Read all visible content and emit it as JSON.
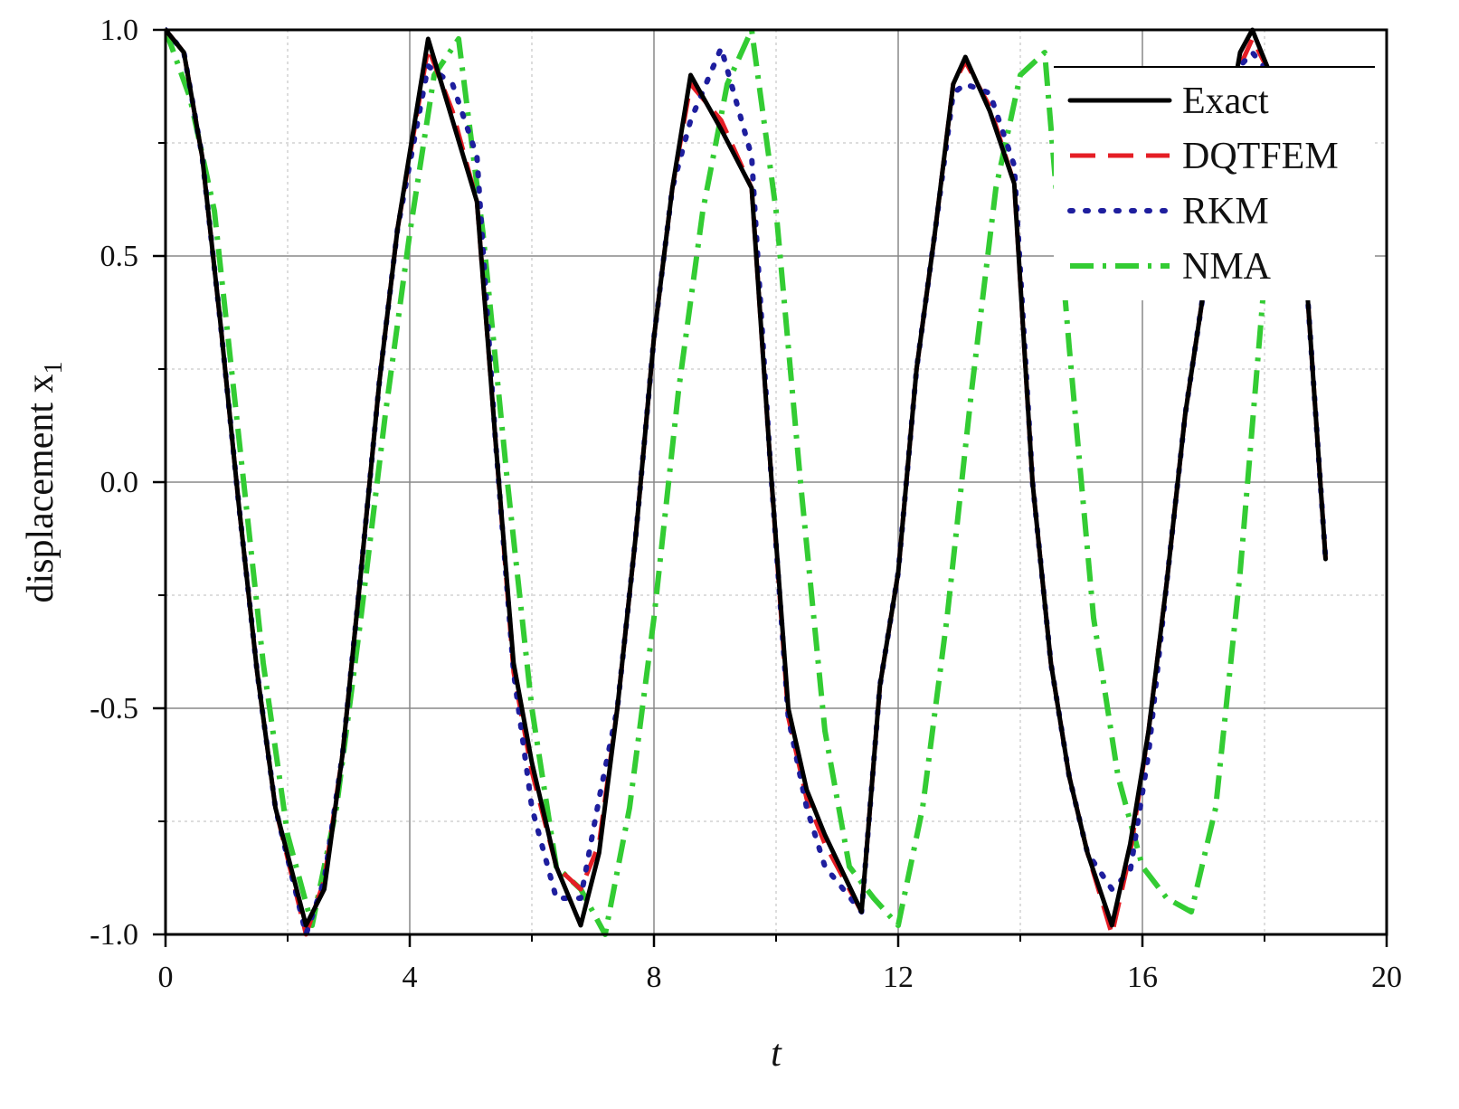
{
  "chart_data": {
    "type": "line",
    "title": "",
    "xlabel": "t",
    "ylabel": "displacement x",
    "ylabel_subscript": "1",
    "xlim": [
      0,
      20
    ],
    "ylim": [
      -1.0,
      1.0
    ],
    "x_ticks": [
      0,
      4,
      8,
      12,
      16,
      20
    ],
    "x_tick_labels": [
      "0",
      "4",
      "8",
      "12",
      "16",
      "20"
    ],
    "y_ticks": [
      -1.0,
      -0.5,
      0.0,
      0.5,
      1.0
    ],
    "y_tick_labels": [
      "-1.0",
      "-0.5",
      "0.0",
      "0.5",
      "1.0"
    ],
    "grid": true,
    "legend_position": "top-right",
    "series": [
      {
        "name": "Exact",
        "color": "#000000",
        "style": "solid",
        "x": [
          0,
          0.3,
          0.6,
          0.9,
          1.2,
          1.5,
          1.8,
          2.3,
          2.6,
          2.9,
          3.2,
          3.5,
          3.8,
          4.3,
          4.7,
          5.1,
          5.4,
          5.7,
          6.0,
          6.4,
          6.8,
          7.1,
          7.4,
          7.7,
          8.0,
          8.3,
          8.6,
          9.1,
          9.6,
          9.9,
          10.2,
          10.5,
          10.8,
          11.4,
          11.7,
          12.0,
          12.3,
          12.6,
          12.9,
          13.1,
          13.5,
          13.9,
          14.2,
          14.5,
          14.8,
          15.1,
          15.5,
          15.8,
          16.1,
          16.4,
          16.7,
          17.0,
          17.3,
          17.6,
          17.8,
          18.1,
          18.4,
          18.7,
          19.0
        ],
        "y": [
          1.0,
          0.95,
          0.72,
          0.35,
          -0.05,
          -0.42,
          -0.72,
          -0.98,
          -0.9,
          -0.6,
          -0.2,
          0.22,
          0.56,
          0.98,
          0.8,
          0.62,
          0.1,
          -0.4,
          -0.62,
          -0.85,
          -0.98,
          -0.82,
          -0.5,
          -0.12,
          0.32,
          0.65,
          0.9,
          0.78,
          0.65,
          0.05,
          -0.5,
          -0.68,
          -0.78,
          -0.95,
          -0.45,
          -0.2,
          0.25,
          0.55,
          0.88,
          0.94,
          0.82,
          0.66,
          0.0,
          -0.4,
          -0.65,
          -0.82,
          -0.98,
          -0.8,
          -0.55,
          -0.22,
          0.15,
          0.42,
          0.72,
          0.95,
          1.0,
          0.9,
          0.75,
          0.42,
          -0.17
        ]
      },
      {
        "name": "DQTFEM",
        "color": "#e51e25",
        "style": "dashed",
        "x": [
          0,
          0.3,
          0.6,
          0.9,
          1.2,
          1.5,
          1.8,
          2.3,
          2.6,
          2.9,
          3.2,
          3.5,
          3.8,
          4.3,
          4.7,
          5.1,
          5.4,
          5.7,
          6.0,
          6.4,
          6.8,
          7.1,
          7.4,
          7.7,
          8.0,
          8.3,
          8.6,
          9.1,
          9.6,
          9.9,
          10.2,
          10.5,
          10.8,
          11.4,
          11.7,
          12.0,
          12.3,
          12.6,
          12.9,
          13.1,
          13.5,
          13.9,
          14.2,
          14.5,
          14.8,
          15.1,
          15.5,
          15.8,
          16.1,
          16.4,
          16.7,
          17.0,
          17.3,
          17.6,
          17.8,
          18.1,
          18.4,
          18.7,
          19.0
        ],
        "y": [
          1.0,
          0.95,
          0.72,
          0.35,
          -0.05,
          -0.42,
          -0.72,
          -1.0,
          -0.88,
          -0.6,
          -0.2,
          0.22,
          0.56,
          0.96,
          0.82,
          0.62,
          0.1,
          -0.42,
          -0.64,
          -0.85,
          -0.9,
          -0.8,
          -0.5,
          -0.12,
          0.32,
          0.65,
          0.88,
          0.8,
          0.65,
          0.05,
          -0.52,
          -0.7,
          -0.8,
          -0.95,
          -0.45,
          -0.2,
          0.25,
          0.55,
          0.88,
          0.93,
          0.83,
          0.66,
          0.0,
          -0.4,
          -0.65,
          -0.82,
          -1.0,
          -0.82,
          -0.55,
          -0.22,
          0.15,
          0.42,
          0.72,
          0.92,
          0.98,
          0.9,
          0.75,
          0.42,
          -0.17
        ]
      },
      {
        "name": "RKM",
        "color": "#1e1e9e",
        "style": "dotted",
        "x": [
          0,
          0.3,
          0.6,
          0.9,
          1.2,
          1.5,
          1.8,
          2.3,
          2.6,
          2.9,
          3.2,
          3.5,
          3.8,
          4.3,
          4.7,
          5.1,
          5.4,
          5.7,
          6.0,
          6.4,
          6.8,
          7.1,
          7.4,
          7.7,
          8.0,
          8.3,
          8.6,
          9.1,
          9.6,
          9.9,
          10.2,
          10.5,
          10.8,
          11.4,
          11.7,
          12.0,
          12.3,
          12.6,
          12.9,
          13.1,
          13.5,
          13.9,
          14.2,
          14.5,
          14.8,
          15.1,
          15.5,
          15.8,
          16.1,
          16.4,
          16.7,
          17.0,
          17.3,
          17.6,
          17.8,
          18.1,
          18.4,
          18.7,
          19.0
        ],
        "y": [
          1.0,
          0.95,
          0.72,
          0.35,
          -0.05,
          -0.42,
          -0.72,
          -1.0,
          -0.88,
          -0.6,
          -0.2,
          0.22,
          0.56,
          0.92,
          0.88,
          0.72,
          0.1,
          -0.42,
          -0.72,
          -0.92,
          -0.92,
          -0.7,
          -0.5,
          -0.12,
          0.32,
          0.65,
          0.8,
          0.96,
          0.72,
          0.05,
          -0.52,
          -0.72,
          -0.85,
          -0.95,
          -0.45,
          -0.2,
          0.25,
          0.55,
          0.86,
          0.88,
          0.86,
          0.7,
          0.0,
          -0.4,
          -0.65,
          -0.82,
          -0.9,
          -0.86,
          -0.6,
          -0.22,
          0.15,
          0.42,
          0.72,
          0.92,
          0.95,
          0.9,
          0.75,
          0.42,
          -0.17
        ]
      },
      {
        "name": "NMA",
        "color": "#33cc33",
        "style": "dash-dot",
        "x": [
          0,
          0.4,
          0.8,
          1.2,
          1.6,
          2.0,
          2.4,
          2.8,
          3.2,
          3.6,
          4.0,
          4.4,
          4.8,
          5.2,
          5.6,
          6.0,
          6.4,
          6.8,
          7.2,
          7.6,
          8.0,
          8.4,
          8.8,
          9.2,
          9.6,
          10.0,
          10.4,
          10.8,
          11.2,
          11.6,
          12.0,
          12.4,
          12.8,
          13.2,
          13.6,
          14.0,
          14.4,
          14.8,
          15.2,
          15.6,
          16.0,
          16.4,
          16.8,
          17.2,
          17.6,
          18.0
        ],
        "y": [
          1.0,
          0.85,
          0.6,
          0.1,
          -0.4,
          -0.78,
          -0.98,
          -0.72,
          -0.3,
          0.15,
          0.55,
          0.9,
          0.98,
          0.55,
          0.0,
          -0.5,
          -0.85,
          -0.9,
          -1.0,
          -0.72,
          -0.3,
          0.2,
          0.6,
          0.88,
          1.0,
          0.6,
          0.0,
          -0.55,
          -0.85,
          -0.92,
          -0.98,
          -0.72,
          -0.3,
          0.2,
          0.65,
          0.9,
          0.95,
          0.3,
          -0.3,
          -0.65,
          -0.85,
          -0.92,
          -0.95,
          -0.72,
          -0.2,
          0.45
        ]
      }
    ]
  }
}
